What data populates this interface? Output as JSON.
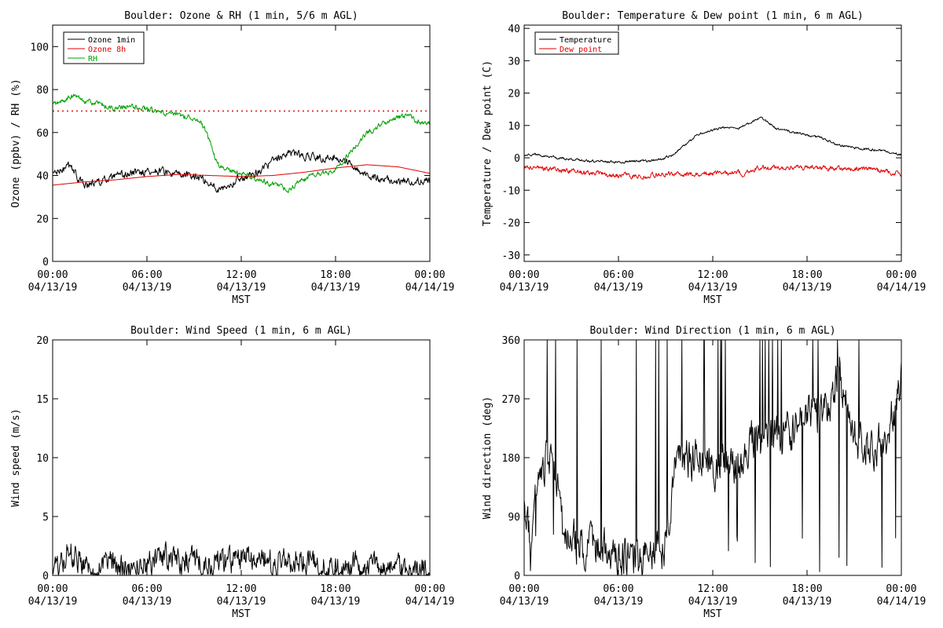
{
  "chart_data": [
    {
      "type": "line",
      "title": "Boulder: Ozone & RH (1 min, 5/6 m AGL)",
      "xlabel": "MST",
      "ylabel": "Ozone (ppbv) / RH (%)",
      "xlim": [
        0,
        24
      ],
      "ylim": [
        0,
        110
      ],
      "yticks": [
        0,
        20,
        40,
        60,
        80,
        100
      ],
      "xticks": [
        {
          "time": "00:00",
          "date": "04/13/19"
        },
        {
          "time": "06:00",
          "date": "04/13/19"
        },
        {
          "time": "12:00",
          "date": "04/13/19"
        },
        {
          "time": "18:00",
          "date": "04/13/19"
        },
        {
          "time": "00:00",
          "date": "04/14/19"
        }
      ],
      "reference_line": {
        "y": 70,
        "color": "#e00000",
        "style": "dotted"
      },
      "legend_position": "top-left",
      "series": [
        {
          "name": "Ozone 1min",
          "color": "#000000",
          "noise": 1.5,
          "x": [
            0,
            0.5,
            1.0,
            1.4,
            1.6,
            2,
            3,
            4,
            5,
            6,
            7,
            8,
            9,
            9.5,
            10,
            10.5,
            11,
            11.5,
            12,
            12.5,
            13,
            13.5,
            14,
            14.5,
            15,
            15.5,
            16,
            16.5,
            17,
            17.5,
            18,
            18.5,
            19,
            19.5,
            20,
            21,
            22,
            23,
            24
          ],
          "y": [
            41,
            42,
            44,
            43,
            38,
            36,
            37,
            39,
            41,
            42,
            42,
            40,
            40,
            39,
            36,
            34,
            35,
            37,
            39,
            40,
            42,
            44,
            46,
            49,
            50,
            50,
            49,
            49,
            48,
            48,
            49,
            47,
            45,
            42,
            40,
            38,
            37,
            38,
            37
          ]
        },
        {
          "name": "Ozone 8h",
          "color": "#e00000",
          "noise": 0,
          "x": [
            0,
            2,
            4,
            6,
            8,
            10,
            12,
            14,
            16,
            18,
            20,
            22,
            24
          ],
          "y": [
            35.5,
            37,
            38,
            39.5,
            40.5,
            40,
            39.5,
            40,
            41.5,
            43.5,
            45,
            44,
            41
          ]
        },
        {
          "name": "RH",
          "color": "#00a000",
          "noise": 1.0,
          "x": [
            0,
            0.5,
            1.0,
            1.5,
            2,
            3,
            4,
            5,
            6,
            7,
            8,
            9,
            9.5,
            10,
            10.3,
            10.6,
            11,
            11.5,
            12,
            12.5,
            13,
            13.5,
            14,
            14.5,
            15,
            15.5,
            16,
            16.5,
            17,
            17.5,
            18,
            18.5,
            19,
            19.5,
            20,
            21,
            22,
            22.5,
            23,
            23.5,
            24
          ],
          "y": [
            73,
            74,
            76,
            77,
            75,
            73,
            71,
            72,
            71,
            69,
            68,
            67,
            64,
            56,
            49,
            44,
            43,
            42,
            41,
            40,
            38,
            37,
            36,
            35,
            33,
            36,
            38,
            40,
            41,
            41,
            43,
            47,
            51,
            56,
            60,
            64,
            67,
            68,
            66,
            64,
            64
          ]
        }
      ]
    },
    {
      "type": "line",
      "title": "Boulder: Temperature & Dew point (1 min, 6 m AGL)",
      "xlabel": "MST",
      "ylabel": "Temperature / Dew point (C)",
      "xlim": [
        0,
        24
      ],
      "ylim": [
        -32,
        41
      ],
      "yticks": [
        -30,
        -20,
        -10,
        0,
        10,
        20,
        30,
        40
      ],
      "xticks": [
        {
          "time": "00:00",
          "date": "04/13/19"
        },
        {
          "time": "06:00",
          "date": "04/13/19"
        },
        {
          "time": "12:00",
          "date": "04/13/19"
        },
        {
          "time": "18:00",
          "date": "04/13/19"
        },
        {
          "time": "00:00",
          "date": "04/14/19"
        }
      ],
      "legend_position": "top-left",
      "series": [
        {
          "name": "Temperature",
          "color": "#000000",
          "noise": 0.3,
          "x": [
            0,
            1,
            2,
            3,
            4,
            5,
            6,
            7,
            8,
            8.5,
            9,
            9.5,
            10,
            10.5,
            11,
            11.5,
            12,
            12.5,
            13,
            13.5,
            14,
            14.5,
            15,
            15.5,
            16,
            17,
            18,
            19,
            20,
            21,
            22,
            23,
            24
          ],
          "y": [
            1,
            1,
            0,
            -0.5,
            -1,
            -1,
            -1.5,
            -1,
            -1,
            -0.5,
            0,
            1,
            3,
            5,
            7,
            8,
            8.5,
            9,
            9.5,
            9,
            10,
            11,
            12.5,
            11,
            9,
            8,
            7,
            6,
            4,
            3,
            2.5,
            2,
            1
          ]
        },
        {
          "name": "Dew point",
          "color": "#e00000",
          "noise": 0.6,
          "x": [
            0,
            2,
            4,
            6,
            8,
            9,
            10,
            11,
            12,
            12.5,
            13,
            13.5,
            14,
            14.5,
            15,
            16,
            18,
            20,
            22,
            24
          ],
          "y": [
            -3,
            -3.5,
            -4.5,
            -5.5,
            -5.5,
            -5,
            -5,
            -5,
            -5,
            -4.5,
            -5,
            -4,
            -5.5,
            -4,
            -3,
            -3,
            -3,
            -3.5,
            -3.5,
            -5
          ]
        }
      ]
    },
    {
      "type": "line",
      "title": "Boulder: Wind Speed (1 min, 6 m AGL)",
      "xlabel": "MST",
      "ylabel": "Wind speed (m/s)",
      "xlim": [
        0,
        24
      ],
      "ylim": [
        0,
        20
      ],
      "yticks": [
        0,
        5,
        10,
        15,
        20
      ],
      "xticks": [
        {
          "time": "00:00",
          "date": "04/13/19"
        },
        {
          "time": "06:00",
          "date": "04/13/19"
        },
        {
          "time": "12:00",
          "date": "04/13/19"
        },
        {
          "time": "18:00",
          "date": "04/13/19"
        },
        {
          "time": "00:00",
          "date": "04/14/19"
        }
      ],
      "series": [
        {
          "name": "",
          "color": "#000000",
          "noise": 0.9,
          "x": [
            0,
            0.5,
            0.8,
            1.0,
            1.5,
            2,
            3,
            4,
            5,
            6,
            7,
            7.5,
            8,
            9,
            10,
            11,
            12,
            12.5,
            13,
            14,
            15,
            15.5,
            16,
            17,
            18,
            19,
            20,
            21,
            22,
            23,
            24
          ],
          "y": [
            0.4,
            0.8,
            1.8,
            2.4,
            1.5,
            1.0,
            0.9,
            0.8,
            0.9,
            1.1,
            1.2,
            1.8,
            1.4,
            1.2,
            1.1,
            1.3,
            1.3,
            1.5,
            1.4,
            1.3,
            1.2,
            1.6,
            1.2,
            0.8,
            0.7,
            0.7,
            0.6,
            0.6,
            0.5,
            0.5,
            0.5
          ]
        }
      ]
    },
    {
      "type": "line",
      "title": "Boulder: Wind Direction (1 min, 6 m AGL)",
      "xlabel": "MST",
      "ylabel": "Wind direction (deg)",
      "xlim": [
        0,
        24
      ],
      "ylim": [
        0,
        360
      ],
      "yticks": [
        0,
        90,
        180,
        270,
        360
      ],
      "xticks": [
        {
          "time": "00:00",
          "date": "04/13/19"
        },
        {
          "time": "06:00",
          "date": "04/13/19"
        },
        {
          "time": "12:00",
          "date": "04/13/19"
        },
        {
          "time": "18:00",
          "date": "04/13/19"
        },
        {
          "time": "00:00",
          "date": "04/14/19"
        }
      ],
      "series": [
        {
          "name": "",
          "color": "#000000",
          "noise": 25,
          "x": [
            0,
            0.3,
            0.5,
            0.7,
            1.0,
            1.5,
            2,
            2.5,
            3,
            4,
            5,
            6,
            7,
            8,
            9,
            9.3,
            9.6,
            10,
            11,
            12,
            13,
            14,
            14.5,
            15,
            16,
            17,
            18,
            19,
            19.5,
            20,
            21,
            22,
            23,
            23.5,
            24
          ],
          "y": [
            100,
            60,
            40,
            130,
            175,
            175,
            160,
            60,
            50,
            45,
            40,
            30,
            25,
            35,
            45,
            80,
            160,
            175,
            180,
            170,
            175,
            170,
            210,
            200,
            210,
            220,
            240,
            250,
            270,
            310,
            210,
            200,
            210,
            250,
            300
          ]
        }
      ]
    }
  ]
}
